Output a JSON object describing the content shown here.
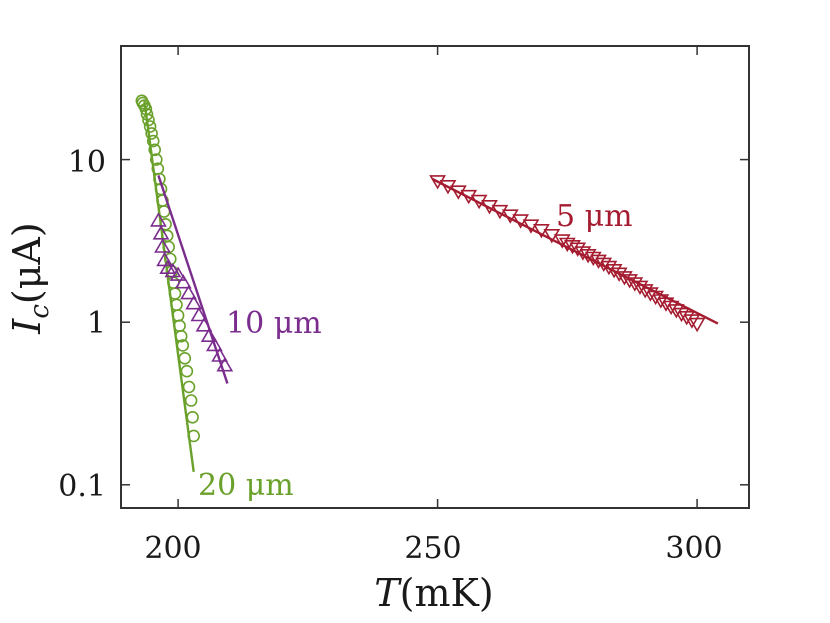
{
  "chart_data": {
    "type": "scatter",
    "title": "",
    "xlabel": {
      "symbol": "T",
      "unit": "(mK)"
    },
    "ylabel": {
      "symbol": "I",
      "subscript": "c",
      "unit": "(μA)"
    },
    "xlim": [
      189,
      310
    ],
    "ylim": [
      0.072,
      50
    ],
    "yscale": "log",
    "xticks": [
      200,
      250,
      300
    ],
    "xtick_labels": [
      "200",
      "250",
      "300"
    ],
    "yticks": [
      0.1,
      1,
      10
    ],
    "ytick_labels": [
      "0.1",
      "1",
      "10"
    ],
    "grid": false,
    "series": [
      {
        "name": "20 μm",
        "label": "20 μm",
        "color": "#6aa12b",
        "marker": "circle",
        "points": [
          [
            193.0,
            23
          ],
          [
            193.2,
            22.3
          ],
          [
            193.5,
            21.5
          ],
          [
            193.8,
            20.5
          ],
          [
            194.0,
            19
          ],
          [
            194.3,
            17.5
          ],
          [
            194.6,
            16
          ],
          [
            194.9,
            14.5
          ],
          [
            195.2,
            13
          ],
          [
            195.5,
            11.5
          ],
          [
            195.8,
            10
          ],
          [
            196.1,
            8.8
          ],
          [
            196.4,
            7.6
          ],
          [
            196.7,
            6.6
          ],
          [
            197.0,
            5.6
          ],
          [
            197.3,
            4.8
          ],
          [
            197.6,
            4.0
          ],
          [
            197.9,
            3.4
          ],
          [
            198.2,
            2.9
          ],
          [
            198.5,
            2.45
          ],
          [
            198.8,
            2.05
          ],
          [
            199.1,
            1.75
          ],
          [
            199.4,
            1.5
          ],
          [
            199.7,
            1.28
          ],
          [
            200.0,
            1.1
          ],
          [
            200.3,
            0.95
          ],
          [
            200.6,
            0.82
          ],
          [
            200.9,
            0.72
          ],
          [
            201.3,
            0.6
          ],
          [
            201.7,
            0.5
          ],
          [
            202.1,
            0.4
          ],
          [
            202.5,
            0.33
          ],
          [
            202.8,
            0.26
          ],
          [
            203.0,
            0.2
          ]
        ],
        "fit": [
          [
            193.5,
            23
          ],
          [
            203.0,
            0.12
          ]
        ]
      },
      {
        "name": "10 μm",
        "label": "10 μm",
        "color": "#7b2d8e",
        "marker": "triangle-up",
        "points": [
          [
            196.2,
            4.2
          ],
          [
            196.7,
            3.5
          ],
          [
            197.0,
            2.9
          ],
          [
            197.4,
            2.4
          ],
          [
            198.0,
            2.15
          ],
          [
            199.0,
            2.05
          ],
          [
            200.0,
            1.95
          ],
          [
            201.0,
            1.75
          ],
          [
            202.0,
            1.5
          ],
          [
            203.0,
            1.3
          ],
          [
            204.0,
            1.1
          ],
          [
            205.0,
            0.95
          ],
          [
            206.0,
            0.82
          ],
          [
            207.0,
            0.72
          ],
          [
            208.0,
            0.62
          ],
          [
            209.0,
            0.54
          ]
        ],
        "fit": [
          [
            196.2,
            8
          ],
          [
            209.5,
            0.42
          ]
        ]
      },
      {
        "name": "5 μm",
        "label": "5 μm",
        "color": "#a51c30",
        "marker": "triangle-down",
        "points": [
          [
            250,
            7.4
          ],
          [
            252,
            6.9
          ],
          [
            254,
            6.4
          ],
          [
            256,
            6.0
          ],
          [
            258,
            5.6
          ],
          [
            260,
            5.2
          ],
          [
            262,
            4.85
          ],
          [
            264,
            4.55
          ],
          [
            266,
            4.25
          ],
          [
            268,
            3.95
          ],
          [
            270,
            3.7
          ],
          [
            272,
            3.45
          ],
          [
            274,
            3.2
          ],
          [
            275,
            3.05
          ],
          [
            276,
            2.95
          ],
          [
            277,
            2.85
          ],
          [
            278,
            2.7
          ],
          [
            279,
            2.6
          ],
          [
            280,
            2.5
          ],
          [
            281,
            2.4
          ],
          [
            282,
            2.3
          ],
          [
            283,
            2.2
          ],
          [
            284,
            2.1
          ],
          [
            285,
            2.0
          ],
          [
            286,
            1.9
          ],
          [
            287,
            1.82
          ],
          [
            288,
            1.74
          ],
          [
            289,
            1.66
          ],
          [
            290,
            1.58
          ],
          [
            291,
            1.51
          ],
          [
            292,
            1.44
          ],
          [
            293,
            1.37
          ],
          [
            294,
            1.31
          ],
          [
            295,
            1.25
          ],
          [
            296,
            1.19
          ],
          [
            297,
            1.13
          ],
          [
            298,
            1.08
          ],
          [
            299,
            1.03
          ],
          [
            300,
            0.98
          ]
        ],
        "fit": [
          [
            249,
            7.6
          ],
          [
            304,
            0.98
          ]
        ]
      }
    ]
  }
}
